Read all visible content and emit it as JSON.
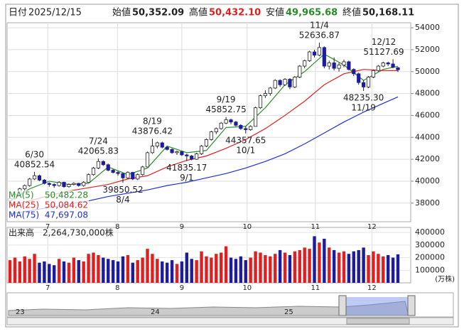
{
  "header": {
    "date_label": "日付",
    "date": "2025/12/15",
    "open_label": "始値",
    "open": "50,352.09",
    "high_label": "高値",
    "high": "50,432.10",
    "low_label": "安値",
    "low": "49,965.68",
    "close_label": "終値",
    "close": "50,168.11"
  },
  "chart_data": [
    {
      "type": "candlestick",
      "up_color": "#ffffff",
      "down_color": "#1c1c9c",
      "xticks": [
        {
          "value": 7.7,
          "label": "7"
        },
        {
          "value": 21.9,
          "label": "8"
        },
        {
          "value": 35,
          "label": "9"
        },
        {
          "value": 48.3,
          "label": "10"
        },
        {
          "value": 62.2,
          "label": "11"
        },
        {
          "value": 73.7,
          "label": "12"
        }
      ],
      "ylim": [
        36300,
        54460
      ],
      "yticks": [
        38000,
        40000,
        42000,
        44000,
        46000,
        48000,
        50000,
        52000,
        54000
      ],
      "grid": true,
      "ohlc": [
        [
          38200,
          38500,
          38000,
          38400
        ],
        [
          38400,
          38900,
          38300,
          38800
        ],
        [
          38800,
          39400,
          38700,
          39300
        ],
        [
          39300,
          39700,
          39100,
          39600
        ],
        [
          39600,
          40300,
          39500,
          40200
        ],
        [
          40200,
          40852.54,
          40100,
          40500
        ],
        [
          40500,
          40600,
          40000,
          40100
        ],
        [
          40100,
          40200,
          39700,
          39800
        ],
        [
          39800,
          39900,
          39500,
          39700
        ],
        [
          39700,
          39800,
          39400,
          39600
        ],
        [
          39600,
          40000,
          39500,
          39900
        ],
        [
          39900,
          39950,
          39400,
          39500
        ],
        [
          39500,
          39800,
          39400,
          39700
        ],
        [
          39700,
          39900,
          39600,
          39800
        ],
        [
          39800,
          39850,
          39500,
          39600
        ],
        [
          39600,
          40000,
          39500,
          39900
        ],
        [
          39900,
          40700,
          39900,
          40600
        ],
        [
          40600,
          41300,
          40500,
          41200
        ],
        [
          41200,
          42065.83,
          41100,
          41800
        ],
        [
          41800,
          41900,
          41400,
          41500
        ],
        [
          41500,
          41600,
          40900,
          41000
        ],
        [
          41000,
          41100,
          40700,
          40800
        ],
        [
          40800,
          40900,
          40500,
          40700
        ],
        [
          40700,
          40750,
          39850.52,
          40300
        ],
        [
          40300,
          40900,
          40200,
          40800
        ],
        [
          40800,
          40850,
          40100,
          40200
        ],
        [
          40200,
          40700,
          40100,
          40600
        ],
        [
          40600,
          41400,
          40500,
          41300
        ],
        [
          41300,
          42700,
          41300,
          42600
        ],
        [
          42600,
          43876.42,
          42500,
          43200
        ],
        [
          43200,
          43600,
          43000,
          43500
        ],
        [
          43500,
          43600,
          43000,
          43100
        ],
        [
          43100,
          43200,
          42800,
          42900
        ],
        [
          42900,
          43000,
          42500,
          42600
        ],
        [
          42600,
          42800,
          42400,
          42700
        ],
        [
          42700,
          42750,
          42300,
          42400
        ],
        [
          42400,
          42500,
          41835.17,
          42300
        ],
        [
          42300,
          42400,
          41900,
          42000
        ],
        [
          42000,
          42600,
          41950,
          42500
        ],
        [
          42500,
          43300,
          42400,
          43200
        ],
        [
          43200,
          43900,
          43100,
          43800
        ],
        [
          43800,
          44600,
          43700,
          44500
        ],
        [
          44500,
          44900,
          44300,
          44800
        ],
        [
          44800,
          45400,
          44700,
          45300
        ],
        [
          45300,
          45852.75,
          45200,
          45600
        ],
        [
          45600,
          45700,
          45200,
          45400
        ],
        [
          45400,
          45500,
          45000,
          45100
        ],
        [
          45100,
          45200,
          44700,
          44800
        ],
        [
          44800,
          45000,
          44357.65,
          44700
        ],
        [
          44700,
          45100,
          44600,
          45000
        ],
        [
          45000,
          46800,
          45000,
          46700
        ],
        [
          46700,
          47900,
          46600,
          47800
        ],
        [
          47800,
          48300,
          47600,
          48000
        ],
        [
          48000,
          48600,
          47800,
          48500
        ],
        [
          48500,
          49300,
          48400,
          49200
        ],
        [
          49200,
          49300,
          48600,
          48800
        ],
        [
          48800,
          49400,
          48700,
          49300
        ],
        [
          49300,
          49400,
          48400,
          48600
        ],
        [
          48600,
          49600,
          48500,
          49500
        ],
        [
          49500,
          50600,
          49400,
          50500
        ],
        [
          50500,
          51100,
          50300,
          51000
        ],
        [
          51000,
          51900,
          50900,
          51800
        ],
        [
          51800,
          52000,
          51300,
          51500
        ],
        [
          51500,
          52636.87,
          51400,
          52200
        ],
        [
          52200,
          52300,
          50300,
          50500
        ],
        [
          50500,
          51000,
          50200,
          50800
        ],
        [
          50800,
          51300,
          50100,
          50300
        ],
        [
          50300,
          50800,
          50000,
          50600
        ],
        [
          50600,
          51100,
          50400,
          50900
        ],
        [
          50900,
          51000,
          50100,
          50200
        ],
        [
          50200,
          50300,
          49600,
          49800
        ],
        [
          49800,
          49900,
          48800,
          49000
        ],
        [
          49000,
          49200,
          48235.3,
          48600
        ],
        [
          48600,
          49600,
          48500,
          49500
        ],
        [
          49500,
          50200,
          49400,
          50100
        ],
        [
          50100,
          50600,
          50000,
          50500
        ],
        [
          50500,
          50900,
          50400,
          50800
        ],
        [
          50800,
          50900,
          50500,
          50700
        ],
        [
          50700,
          51127.69,
          50300,
          50400
        ],
        [
          50352.09,
          50432.1,
          49965.68,
          50168.11
        ]
      ],
      "series": [
        {
          "name": "MA(5)",
          "color": "#2a8a2a",
          "value_label": "50,482.28",
          "x": [
            0,
            4,
            8,
            12,
            16,
            20,
            24,
            28,
            32,
            36,
            40,
            44,
            48,
            52,
            56,
            60,
            64,
            68,
            72,
            76,
            79
          ],
          "values": [
            38200,
            39300,
            40000,
            39700,
            39800,
            41300,
            40600,
            41200,
            43200,
            42600,
            42800,
            44900,
            45000,
            46700,
            48800,
            50000,
            51600,
            50600,
            49200,
            50200,
            50482.28
          ]
        },
        {
          "name": "MA(25)",
          "color": "#e02020",
          "value_label": "50,084.62",
          "x": [
            0,
            4,
            8,
            12,
            16,
            20,
            24,
            28,
            32,
            36,
            40,
            44,
            48,
            52,
            56,
            60,
            64,
            68,
            72,
            76,
            79
          ],
          "values": [
            37800,
            38200,
            38700,
            39100,
            39400,
            39700,
            40200,
            40500,
            41300,
            41900,
            42300,
            43000,
            43800,
            44800,
            46000,
            47300,
            48800,
            49800,
            50200,
            50100,
            50084.62
          ]
        },
        {
          "name": "MA(75)",
          "color": "#2030d0",
          "value_label": "47,697.08",
          "x": [
            0,
            4,
            8,
            12,
            16,
            20,
            24,
            28,
            32,
            36,
            40,
            44,
            48,
            52,
            56,
            60,
            64,
            68,
            72,
            76,
            79
          ],
          "values": [
            37000,
            37300,
            37600,
            37900,
            38200,
            38600,
            38900,
            39200,
            39600,
            39900,
            40300,
            40700,
            41200,
            41800,
            42500,
            43400,
            44400,
            45400,
            46300,
            47100,
            47697.08
          ]
        }
      ],
      "annotations": [
        {
          "date": "6/30",
          "label": "40852.54",
          "value": 40852.54
        },
        {
          "date": "7/24",
          "label": "42065.83",
          "value": 42065.83
        },
        {
          "date": "8/4",
          "label": "39850.52",
          "value": 39850.52
        },
        {
          "date": "8/19",
          "label": "43876.42",
          "value": 43876.42
        },
        {
          "date": "9/1",
          "label": "41835.17",
          "value": 41835.17
        },
        {
          "date": "9/19",
          "label": "45852.75",
          "value": 45852.75
        },
        {
          "date": "10/1",
          "label": "44357.65",
          "value": 44357.65
        },
        {
          "date": "11/4",
          "label": "52636.87",
          "value": 52636.87
        },
        {
          "date": "11/19",
          "label": "48235.30",
          "value": 48235.3
        },
        {
          "date": "12/12",
          "label": "51127.69",
          "value": 51127.69
        }
      ]
    },
    {
      "type": "volume",
      "title": "出来高　2,264,730,000株",
      "unit": "(万株)",
      "up_color": "#e02020",
      "down_color": "#1c1c9c",
      "ylim": [
        0,
        440000
      ],
      "yticks": [
        100000,
        200000,
        300000,
        400000
      ],
      "values": [
        180000,
        200000,
        170000,
        210000,
        190000,
        230000,
        160000,
        170000,
        150000,
        140000,
        190000,
        170000,
        160000,
        200000,
        180000,
        170000,
        230000,
        240000,
        220000,
        200000,
        190000,
        180000,
        170000,
        210000,
        220000,
        160000,
        180000,
        200000,
        270000,
        230000,
        190000,
        170000,
        160000,
        180000,
        150000,
        170000,
        240000,
        190000,
        180000,
        250000,
        210000,
        200000,
        230000,
        240000,
        290000,
        200000,
        190000,
        210000,
        180000,
        200000,
        250000,
        240000,
        220000,
        210000,
        230000,
        260000,
        240000,
        220000,
        250000,
        260000,
        280000,
        270000,
        370000,
        320000,
        350000,
        280000,
        260000,
        240000,
        250000,
        230000,
        250000,
        260000,
        280000,
        220000,
        250000,
        230000,
        210000,
        220000,
        200000,
        226473
      ]
    }
  ],
  "navigator": {
    "labels": [
      "23",
      "24",
      "25"
    ]
  }
}
